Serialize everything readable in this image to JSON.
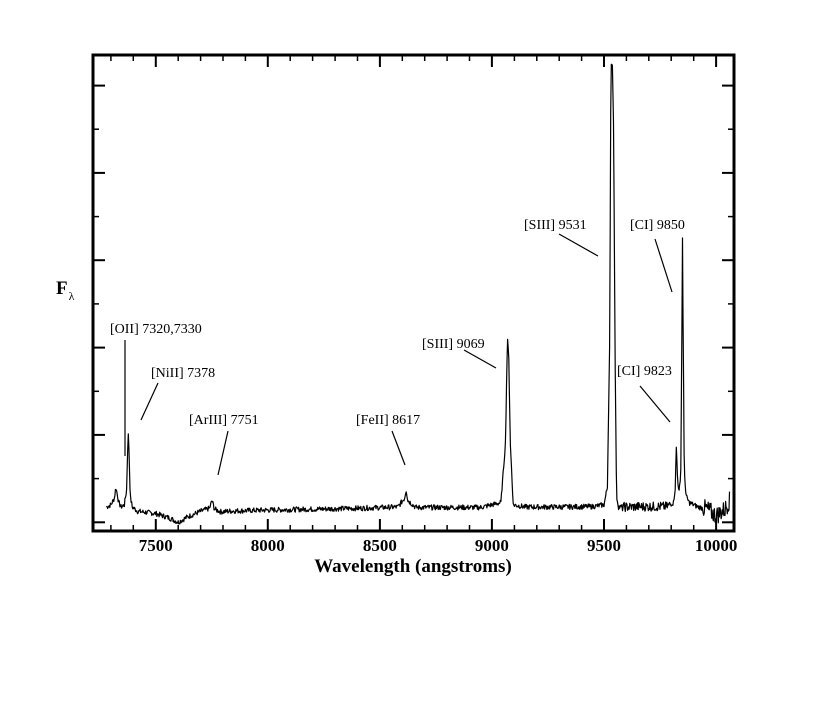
{
  "chart_data": {
    "type": "line",
    "title": "",
    "xlabel": "Wavelength (angstroms)",
    "ylabel": "F",
    "ylabel_subscript": "λ",
    "xlim": [
      7220,
      10080
    ],
    "ylim": [
      -0.02,
      1.07
    ],
    "x_ticks": [
      7500,
      8000,
      8500,
      9000,
      9500,
      10000
    ],
    "x_tick_labels": [
      "7500",
      "8000",
      "8500",
      "9000",
      "9500",
      "10000"
    ],
    "y_ticks_show_labels": false,
    "grid": false,
    "legend": "none",
    "line_color": "#000000",
    "series": [
      {
        "name": "",
        "continuum_level": 0.03,
        "noise_amplitude": 0.006,
        "x": [
          7280,
          7300,
          7315,
          7322,
          7328,
          7335,
          7345,
          7360,
          7370,
          7374,
          7378,
          7382,
          7386,
          7395,
          7420,
          7500,
          7560,
          7600,
          7640,
          7700,
          7740,
          7751,
          7762,
          7790,
          7850,
          8000,
          8200,
          8400,
          8580,
          8610,
          8617,
          8625,
          8660,
          8800,
          8950,
          9040,
          9060,
          9069,
          9075,
          9082,
          9095,
          9150,
          9300,
          9450,
          9500,
          9515,
          9525,
          9531,
          9537,
          9543,
          9549,
          9556,
          9565,
          9590,
          9700,
          9780,
          9810,
          9818,
          9823,
          9828,
          9835,
          9842,
          9846,
          9850,
          9854,
          9858,
          9866,
          9880,
          9920,
          9960,
          10000,
          10040,
          10060
        ],
        "y": [
          0.035,
          0.04,
          0.055,
          0.08,
          0.065,
          0.045,
          0.035,
          0.04,
          0.075,
          0.16,
          0.205,
          0.14,
          0.06,
          0.035,
          0.025,
          0.02,
          0.01,
          0.0,
          0.012,
          0.025,
          0.032,
          0.05,
          0.03,
          0.024,
          0.026,
          0.028,
          0.03,
          0.032,
          0.035,
          0.055,
          0.075,
          0.05,
          0.034,
          0.034,
          0.034,
          0.045,
          0.18,
          0.42,
          0.38,
          0.18,
          0.04,
          0.035,
          0.035,
          0.036,
          0.04,
          0.08,
          0.4,
          1.04,
          1.06,
          0.9,
          0.4,
          0.06,
          0.035,
          0.035,
          0.036,
          0.036,
          0.045,
          0.08,
          0.18,
          0.1,
          0.07,
          0.1,
          0.32,
          0.65,
          0.38,
          0.12,
          0.06,
          0.045,
          0.035,
          0.03,
          0.015,
          0.03,
          0.05
        ]
      }
    ],
    "annotations": [
      {
        "label": "[OII] 7320,7330",
        "x": 7325,
        "y": 0.07
      },
      {
        "label": "[NiII] 7378",
        "x": 7380,
        "y": 0.205
      },
      {
        "label": "[ArIII] 7751",
        "x": 7751,
        "y": 0.055
      },
      {
        "label": "[FeII] 8617",
        "x": 8617,
        "y": 0.08
      },
      {
        "label": "[SIII] 9069",
        "x": 9069,
        "y": 0.42
      },
      {
        "label": "[SIII] 9531",
        "x": 9531,
        "y": 1.04
      },
      {
        "label": "[CI] 9823",
        "x": 9823,
        "y": 0.18
      },
      {
        "label": "[CI] 9850",
        "x": 9850,
        "y": 0.65
      }
    ]
  }
}
